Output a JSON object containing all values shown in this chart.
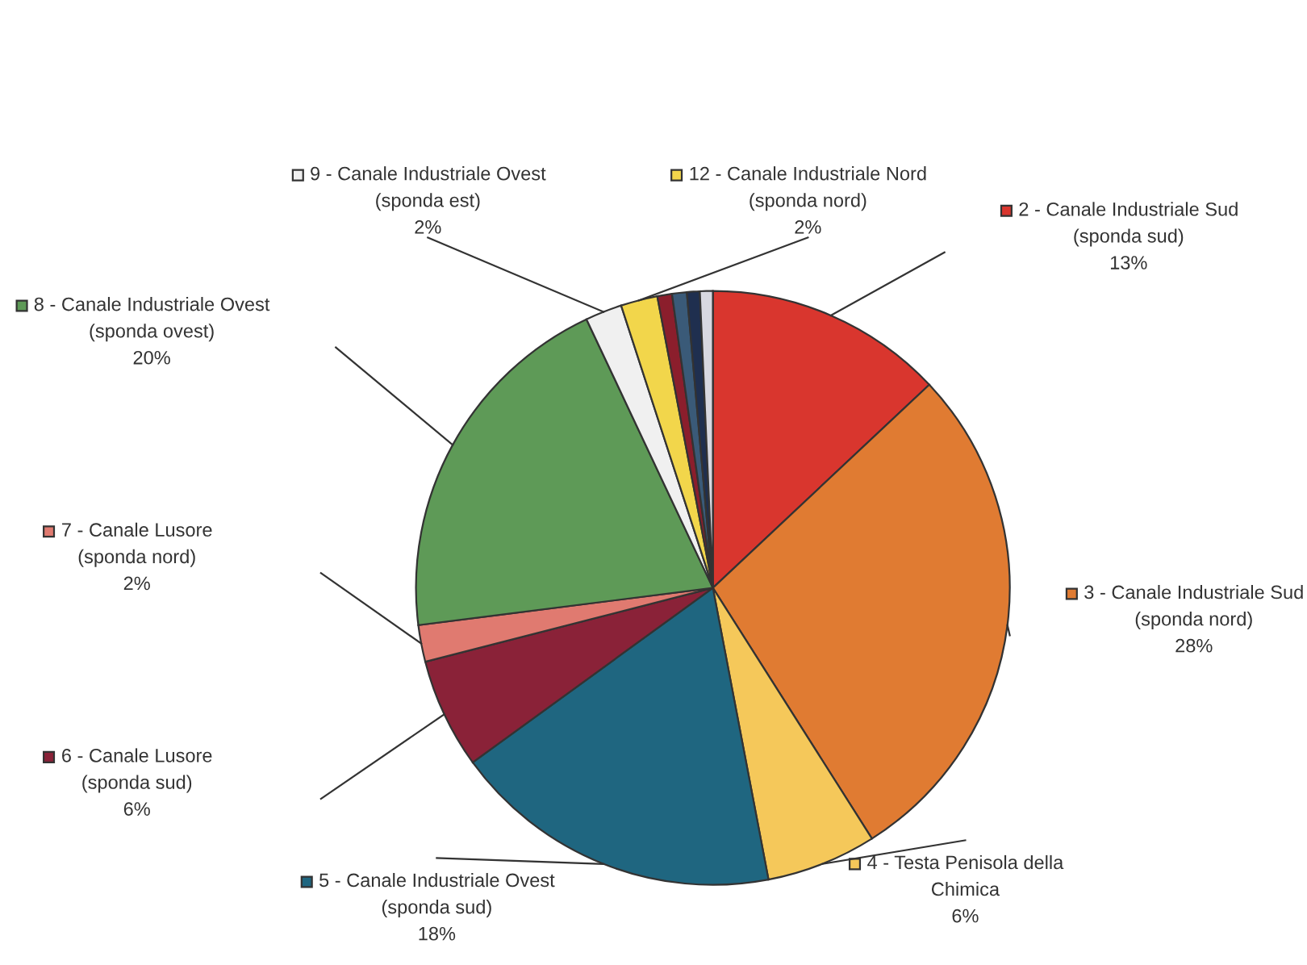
{
  "chart_data": {
    "type": "pie",
    "categories": [
      "2 - Canale Industriale Sud (sponda sud)",
      "3 - Canale Industriale Sud (sponda nord)",
      "4 - Testa Penisola della Chimica",
      "5 - Canale Industriale Ovest (sponda sud)",
      "6 - Canale Lusore (sponda sud)",
      "7 - Canale Lusore (sponda nord)",
      "8 - Canale Industriale Ovest (sponda ovest)",
      "9 - Canale Industriale Ovest (sponda est)",
      "12 - Canale Industriale Nord (sponda nord)",
      null,
      null,
      null,
      null
    ],
    "values": [
      13,
      28,
      6,
      18,
      6,
      2,
      20,
      2,
      2,
      0.8,
      0.8,
      0.7,
      0.7
    ],
    "value_labels": [
      "13%",
      "28%",
      "6%",
      "18%",
      "6%",
      "2%",
      "20%",
      "2%",
      "2%",
      null,
      null,
      null,
      null
    ],
    "colors": [
      "#d9362e",
      "#e07b32",
      "#f5c85a",
      "#1f6680",
      "#8a2238",
      "#e07a70",
      "#5e9a57",
      "#f0f0f0",
      "#f2d64b",
      "#8b1e2c",
      "#3a5a78",
      "#1f2f4f",
      "#d8d8e0"
    ],
    "legend": true
  }
}
